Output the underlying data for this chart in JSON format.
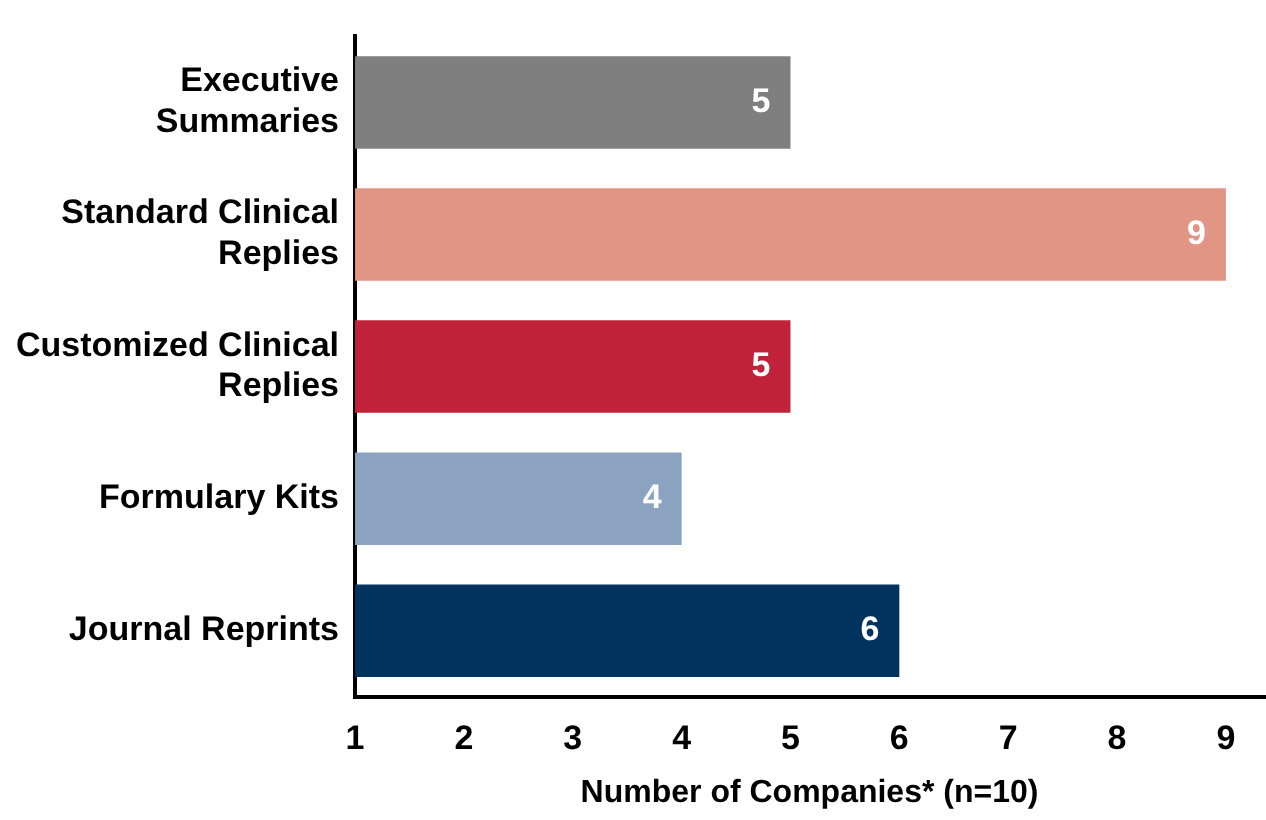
{
  "chart_data": {
    "type": "bar",
    "orientation": "horizontal",
    "xlabel": "Number of Companies* (n=10)",
    "categories": [
      "Executive Summaries",
      "Standard Clinical Replies",
      "Customized Clinical Replies",
      "Formulary Kits",
      "Journal Reprints"
    ],
    "values": [
      5,
      9,
      5,
      4,
      6
    ],
    "colors": [
      "#7f7f7f",
      "#e09585",
      "#c0223a",
      "#8ba3c1",
      "#00335e"
    ],
    "xlim": [
      1,
      9.35
    ],
    "xticks": [
      1,
      2,
      3,
      4,
      5,
      6,
      7,
      8,
      9
    ],
    "grid": false,
    "legend": false,
    "data_labels": true
  }
}
